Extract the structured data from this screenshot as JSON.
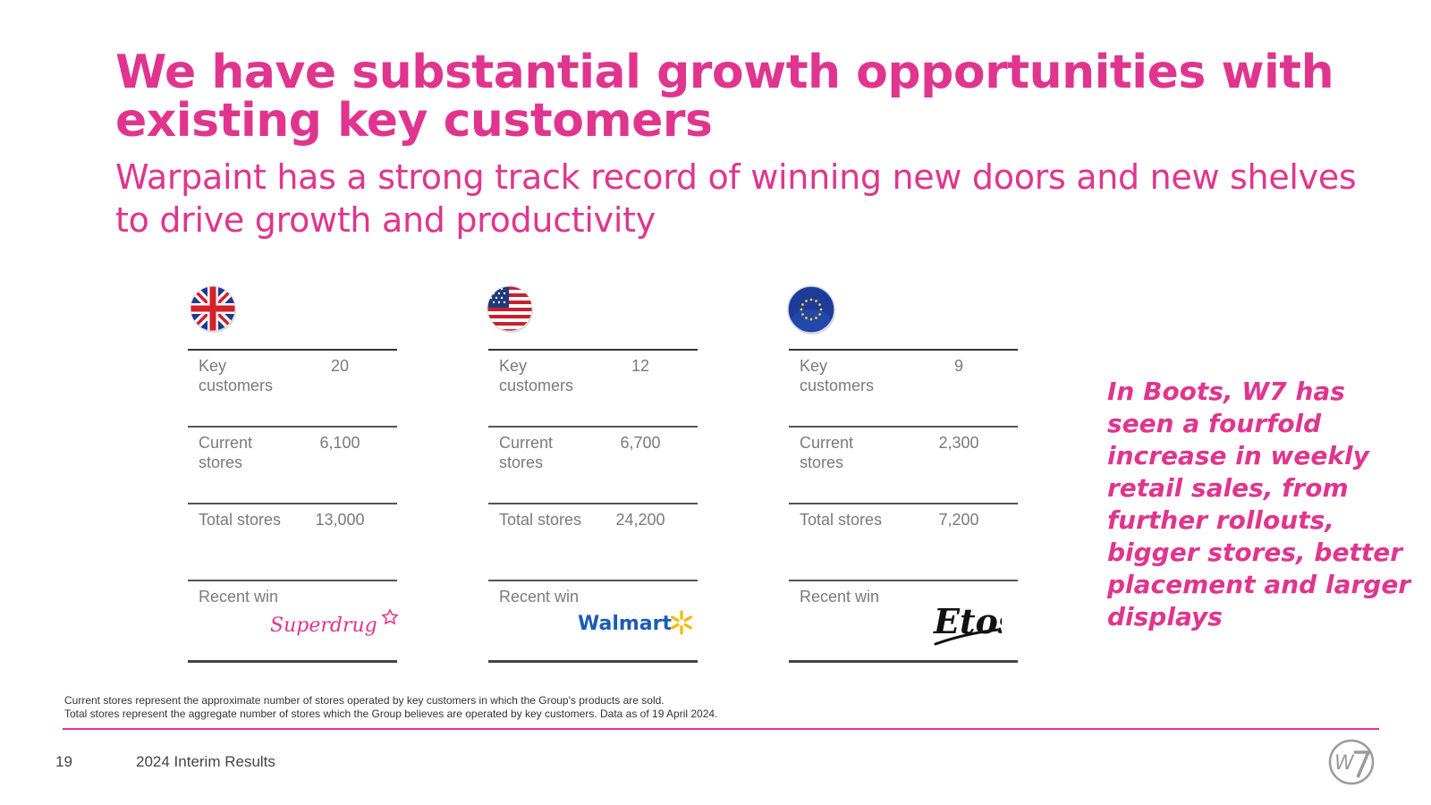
{
  "title": "We have substantial growth opportunities with existing key customers",
  "subtitle": "Warpaint has a strong track record of winning new doors and new shelves to drive growth and productivity",
  "regions": [
    {
      "flag": "uk-flag-icon",
      "rows": [
        {
          "label": "Key customers",
          "value": "20"
        },
        {
          "label": "Current stores",
          "value": "6,100"
        },
        {
          "label": "Total stores",
          "value": "13,000"
        },
        {
          "label": "Recent win",
          "logo_text": "Superdrug"
        }
      ]
    },
    {
      "flag": "us-flag-icon",
      "rows": [
        {
          "label": "Key customers",
          "value": "12"
        },
        {
          "label": "Current stores",
          "value": "6,700"
        },
        {
          "label": "Total stores",
          "value": "24,200"
        },
        {
          "label": "Recent win",
          "logo_text": "Walmart"
        }
      ]
    },
    {
      "flag": "eu-flag-icon",
      "rows": [
        {
          "label": "Key customers",
          "value": "9"
        },
        {
          "label": "Current stores",
          "value": "2,300"
        },
        {
          "label": "Total stores",
          "value": "7,200"
        },
        {
          "label": "Recent win",
          "logo_text": "Etos"
        }
      ]
    }
  ],
  "callout": "In Boots, W7 has seen a fourfold increase in weekly retail sales, from further rollouts, bigger stores, better placement and larger displays",
  "footnotes": [
    "Current stores represent the approximate number of stores operated by key customers in which the Group's products are sold.",
    "Total stores represent the aggregate number of stores which the Group believes are operated by key customers. Data as of 19 April 2024."
  ],
  "footer": {
    "page_number": "19",
    "title": "2024 Interim Results",
    "logo_text": "W7"
  },
  "colors": {
    "brand_pink": "#e0358e",
    "text_grey": "#7a7a7a"
  }
}
